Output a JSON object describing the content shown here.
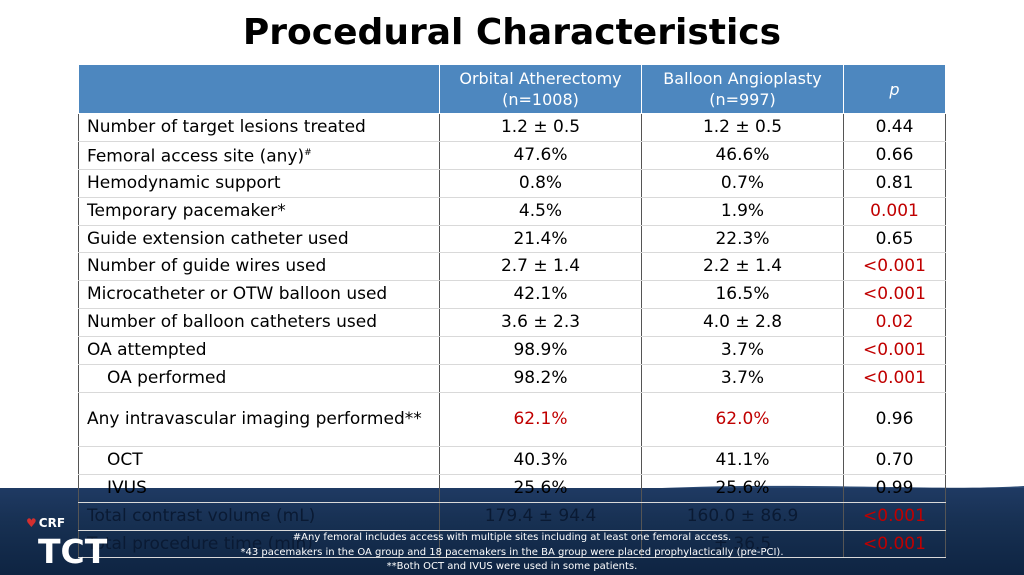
{
  "title": "Procedural Characteristics",
  "table": {
    "headers": {
      "label": "",
      "oa": "Orbital Atherectomy\n(n=1008)",
      "ba": "Balloon Angioplasty\n(n=997)",
      "p": "p"
    },
    "rows": [
      {
        "label": "Number of target lesions treated",
        "mark": "",
        "oa": "1.2 ± 0.5",
        "ba": "1.2 ± 0.5",
        "p": "0.44"
      },
      {
        "label": "Femoral access site (any)",
        "mark": "#",
        "oa": "47.6%",
        "ba": "46.6%",
        "p": "0.66"
      },
      {
        "label": "Hemodynamic support",
        "mark": "",
        "oa": "0.8%",
        "ba": "0.7%",
        "p": "0.81"
      },
      {
        "label": "Temporary pacemaker*",
        "mark": "",
        "oa": "4.5%",
        "ba": "1.9%",
        "p": "0.001"
      },
      {
        "label": "Guide extension catheter used",
        "mark": "",
        "oa": "21.4%",
        "ba": "22.3%",
        "p": "0.65"
      },
      {
        "label": "Number of guide wires used",
        "mark": "",
        "oa": "2.7 ± 1.4",
        "ba": "2.2 ± 1.4",
        "p": "<0.001"
      },
      {
        "label": "Microcatheter or OTW balloon used",
        "mark": "",
        "oa": "42.1%",
        "ba": "16.5%",
        "p": "<0.001"
      },
      {
        "label": "Number of balloon catheters used",
        "mark": "",
        "oa": "3.6 ± 2.3",
        "ba": "4.0 ± 2.8",
        "p": "0.02"
      },
      {
        "label": "OA attempted",
        "mark": "",
        "oa": "98.9%",
        "ba": "3.7%",
        "p": "<0.001"
      },
      {
        "label": "OA performed",
        "mark": "",
        "oa": "98.2%",
        "ba": "3.7%",
        "p": "<0.001"
      },
      {
        "label": "Any intravascular imaging performed**",
        "mark": "",
        "oa": "62.1%",
        "ba": "62.0%",
        "p": "0.96"
      },
      {
        "label": "OCT",
        "mark": "",
        "oa": "40.3%",
        "ba": "41.1%",
        "p": "0.70"
      },
      {
        "label": "IVUS",
        "mark": "",
        "oa": "25.6%",
        "ba": "25.6%",
        "p": "0.99"
      },
      {
        "label": "Total contrast volume (mL)",
        "mark": "",
        "oa": "179.4 ± 94.4",
        "ba": "160.0 ± 86.9",
        "p": "<0.001"
      },
      {
        "label": "Total procedure time (min)",
        "mark": "",
        "oa": "",
        "ba": "± 36.5",
        "p": "<0.001"
      }
    ]
  },
  "footnotes": {
    "line1": "#Any femoral includes access with multiple sites including at least one femoral access.",
    "line2": "*43 pacemakers in the OA group and 18 pacemakers in the BA group were placed prophylactically (pre-PCI).",
    "line3": "**Both OCT and IVUS were used in some patients."
  },
  "logos": {
    "crf": "CRF",
    "tct": "TCT"
  },
  "colors": {
    "header_bg": "#4d87bf",
    "significant": "#c00000",
    "band": "#173052"
  }
}
